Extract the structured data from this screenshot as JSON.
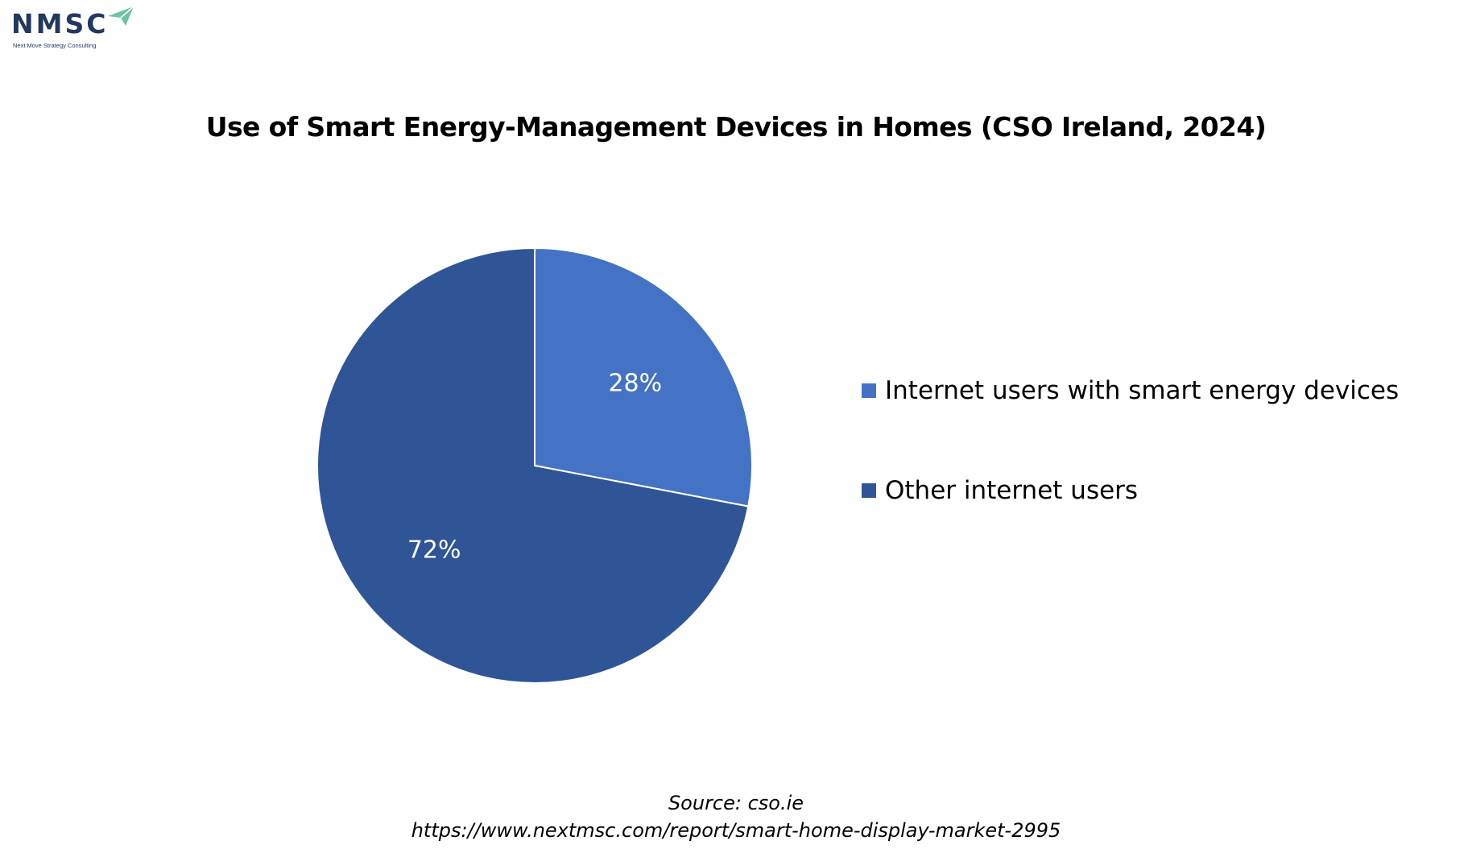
{
  "logo": {
    "name": "NMSC",
    "tagline": "Next Move Strategy Consulting"
  },
  "chart_data": {
    "type": "pie",
    "title": "Use of Smart Energy-Management Devices in Homes (CSO Ireland, 2024)",
    "slices": [
      {
        "label": "Internet users with smart energy devices",
        "value": 28,
        "display": "28%",
        "color": "#4472c4"
      },
      {
        "label": "Other internet users",
        "value": 72,
        "display": "72%",
        "color": "#2f5597"
      }
    ],
    "legend_position": "right",
    "start": "12 o'clock, clockwise"
  },
  "source": {
    "line1": "Source: cso.ie",
    "line2": "https://www.nextmsc.com/report/smart-home-display-market-2995"
  },
  "colors": {
    "logo_text": "#24375f",
    "logo_arrow": "#6cc3a6",
    "slice_edge": "#ffffff",
    "data_label": "#ffffff"
  }
}
